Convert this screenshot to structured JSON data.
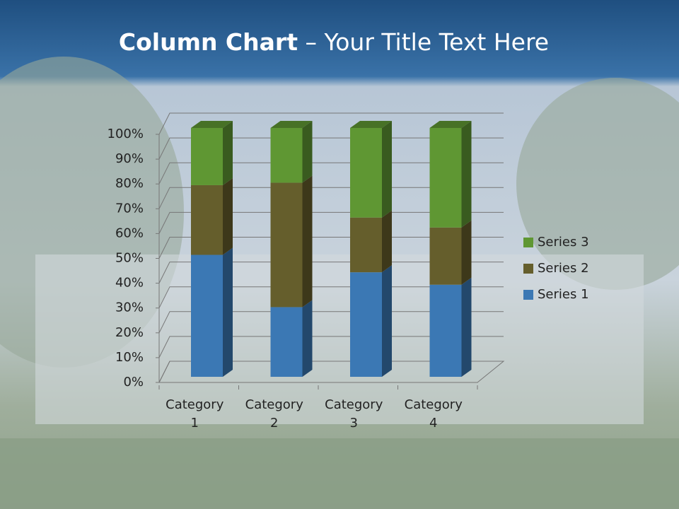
{
  "title": {
    "bold": "Column Chart",
    "rest": "– Your Title Text Here"
  },
  "chart_data": {
    "type": "stacked_bar_3d",
    "categories": [
      "Category 1",
      "Category 2",
      "Category 3",
      "Category 4"
    ],
    "series": [
      {
        "name": "Series 1",
        "color": "#3b78b4",
        "values": [
          49,
          28,
          42,
          37
        ]
      },
      {
        "name": "Series 2",
        "color": "#655e2c",
        "values": [
          28,
          50,
          22,
          23
        ]
      },
      {
        "name": "Series 3",
        "color": "#5f9733",
        "values": [
          23,
          22,
          36,
          40
        ]
      }
    ],
    "ylim": [
      0,
      100
    ],
    "yticks": [
      {
        "value": 0,
        "label": "0%"
      },
      {
        "value": 10,
        "label": "10%"
      },
      {
        "value": 20,
        "label": "20%"
      },
      {
        "value": 30,
        "label": "30%"
      },
      {
        "value": 40,
        "label": "40%"
      },
      {
        "value": 50,
        "label": "50%"
      },
      {
        "value": 60,
        "label": "60%"
      },
      {
        "value": 70,
        "label": "70%"
      },
      {
        "value": 80,
        "label": "80%"
      },
      {
        "value": 90,
        "label": "90%"
      },
      {
        "value": 100,
        "label": "100%"
      }
    ],
    "grid": true,
    "legend": "right"
  }
}
